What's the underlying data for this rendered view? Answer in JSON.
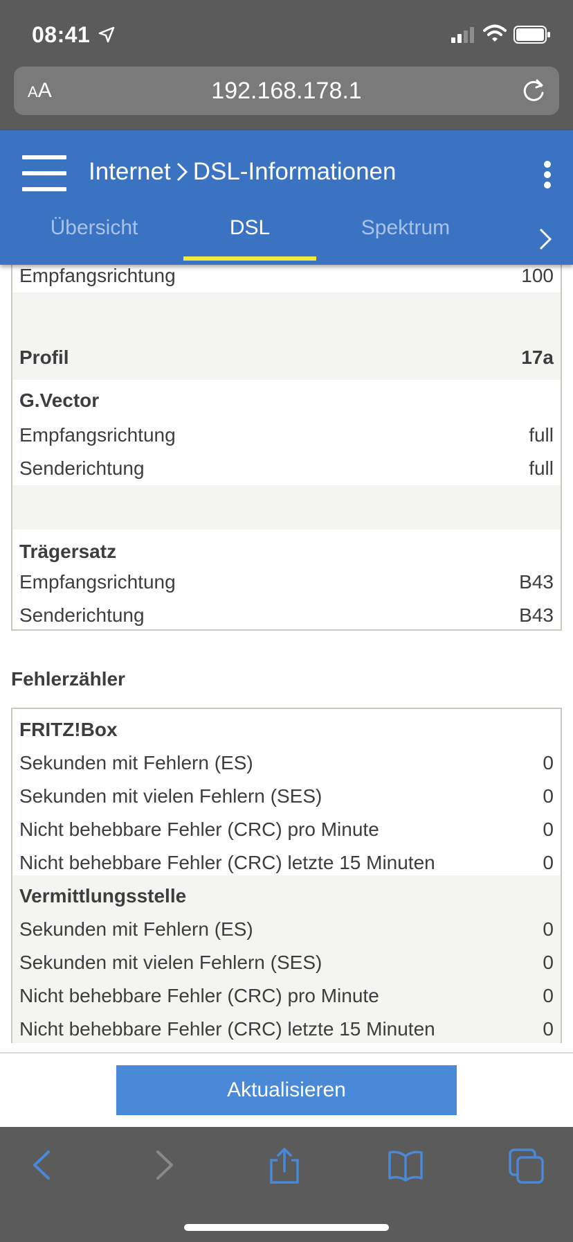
{
  "status_bar": {
    "time": "08:41"
  },
  "browser": {
    "text_size_label_small": "A",
    "text_size_label": "A",
    "url": "192.168.178.1"
  },
  "header": {
    "breadcrumb_parent": "Internet",
    "breadcrumb_current": "DSL-Informationen",
    "tabs": [
      {
        "label": "Übersicht"
      },
      {
        "label": "DSL",
        "active": true
      },
      {
        "label": "Spektrum"
      }
    ]
  },
  "dsl_table": {
    "top_row": {
      "label": "Empfangsrichtung",
      "value": "100"
    },
    "profil": {
      "label": "Profil",
      "value": "17a"
    },
    "gvector": {
      "title": "G.Vector",
      "rows": [
        {
          "label": "Empfangsrichtung",
          "value": "full"
        },
        {
          "label": "Senderichtung",
          "value": "full"
        }
      ]
    },
    "traegersatz": {
      "title": "Trägersatz",
      "rows": [
        {
          "label": "Empfangsrichtung",
          "value": "B43"
        },
        {
          "label": "Senderichtung",
          "value": "B43"
        }
      ]
    }
  },
  "errors": {
    "section_title": "Fehlerzähler",
    "fritzbox": {
      "title": "FRITZ!Box",
      "rows": [
        {
          "label": "Sekunden mit Fehlern (ES)",
          "value": "0"
        },
        {
          "label": "Sekunden mit vielen Fehlern (SES)",
          "value": "0"
        },
        {
          "label": "Nicht behebbare Fehler (CRC) pro Minute",
          "value": "0"
        },
        {
          "label": "Nicht behebbare Fehler (CRC) letzte 15 Minuten",
          "value": "0"
        }
      ]
    },
    "vermittlungsstelle": {
      "title": "Vermittlungsstelle",
      "rows": [
        {
          "label": "Sekunden mit Fehlern (ES)",
          "value": "0"
        },
        {
          "label": "Sekunden mit vielen Fehlern (SES)",
          "value": "0"
        },
        {
          "label": "Nicht behebbare Fehler (CRC) pro Minute",
          "value": "0"
        },
        {
          "label": "Nicht behebbare Fehler (CRC) letzte 15 Minuten",
          "value": "0"
        }
      ]
    }
  },
  "actions": {
    "refresh_label": "Aktualisieren"
  },
  "colors": {
    "header_blue": "#3b73c3",
    "tab_underline": "#f3ea3a",
    "button_blue": "#4a88d8",
    "toolbar_icon_blue": "#4a88d8"
  }
}
